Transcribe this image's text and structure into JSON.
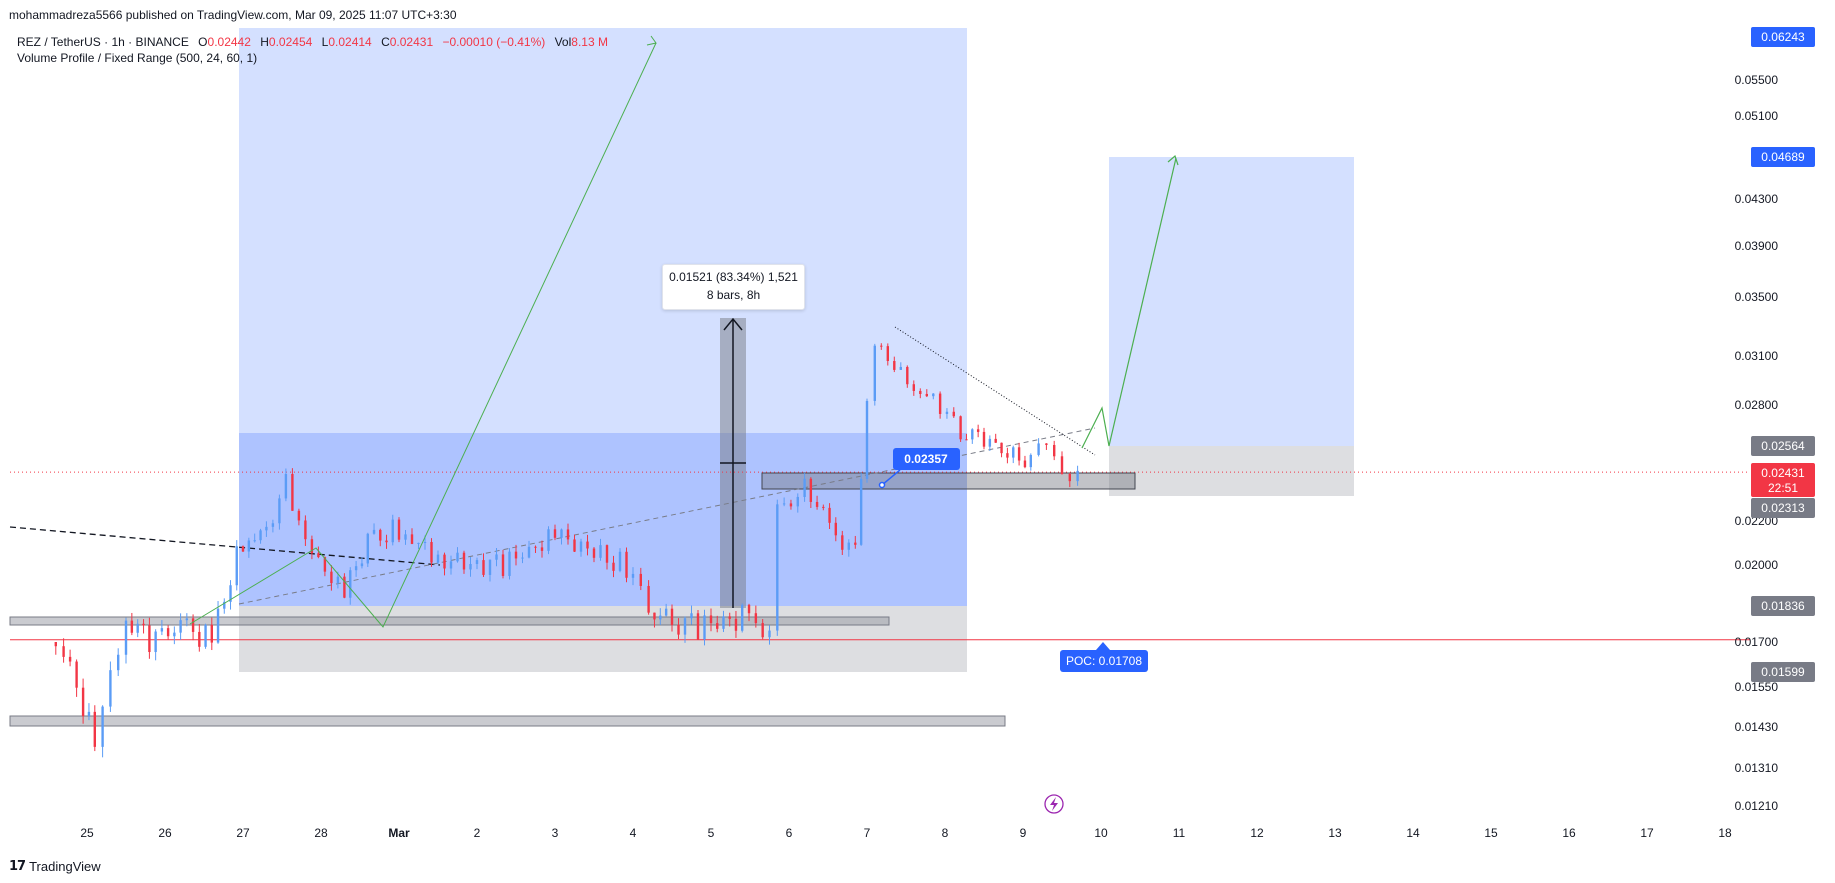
{
  "header": {
    "published_line": "mohammadreza5566 published on TradingView.com, Mar 09, 2025 11:07 UTC+3:30"
  },
  "legend": {
    "symbol_line_prefix": "REZ / TetherUS · 1h · BINANCE",
    "open_label": "O",
    "open_value": "0.02442",
    "high_label": "H",
    "high_value": "0.02454",
    "low_label": "L",
    "low_value": "0.02414",
    "close_label": "C",
    "close_value": "0.02431",
    "change_value": "−0.00010 (−0.41%)",
    "vol_label": "Vol",
    "vol_value": "8.13 M",
    "indicator_line": "Volume Profile / Fixed Range (500, 24, 60, 1)"
  },
  "measure": {
    "line1": "0.01521 (83.34%) 1,521",
    "line2": "8 bars, 8h"
  },
  "labels": {
    "point_label": "0.02357",
    "poc_label": "POC: 0.01708",
    "brand": "TradingView"
  },
  "colors": {
    "up": "#5b9cf6",
    "down": "#f23645",
    "accent_blue": "#2962ff",
    "grey_zone": "#787b86",
    "price_line": "#f23645"
  },
  "chart_data": {
    "type": "candlestick",
    "symbol": "REZ / TetherUS",
    "interval": "1h",
    "exchange": "BINANCE",
    "x_ticks": [
      "25",
      "26",
      "27",
      "28",
      "Mar",
      "2",
      "3",
      "4",
      "5",
      "6",
      "7",
      "8",
      "9",
      "10",
      "11",
      "12",
      "13",
      "14",
      "15",
      "16",
      "17",
      "18"
    ],
    "y_ticks": [
      "0.05500",
      "0.05100",
      "0.04300",
      "0.03900",
      "0.03500",
      "0.03100",
      "0.02800",
      "0.02200",
      "0.02000",
      "0.01700",
      "0.01550",
      "0.01430",
      "0.01310",
      "0.01210"
    ],
    "y_scale": "log",
    "price_tags": [
      {
        "value": "0.06243",
        "kind": "blue"
      },
      {
        "value": "0.04689",
        "kind": "blue"
      },
      {
        "value": "0.02564",
        "kind": "grey"
      },
      {
        "value": "0.02431",
        "kind": "red",
        "sub": "22:51"
      },
      {
        "value": "0.02313",
        "kind": "grey"
      },
      {
        "value": "0.01836",
        "kind": "grey"
      },
      {
        "value": "0.01599",
        "kind": "grey"
      }
    ],
    "current_price": 0.02431,
    "poc": 0.01708,
    "series": [
      {
        "day": 24.5,
        "price": 0.017
      },
      {
        "day": 24.7,
        "price": 0.0163
      },
      {
        "day": 24.95,
        "price": 0.015
      },
      {
        "day": 25.1,
        "price": 0.0138
      },
      {
        "day": 25.3,
        "price": 0.0162
      },
      {
        "day": 25.5,
        "price": 0.0178
      },
      {
        "day": 25.8,
        "price": 0.0172
      },
      {
        "day": 26.2,
        "price": 0.0175
      },
      {
        "day": 26.6,
        "price": 0.0171
      },
      {
        "day": 27.0,
        "price": 0.021
      },
      {
        "day": 27.3,
        "price": 0.0215
      },
      {
        "day": 27.55,
        "price": 0.0238
      },
      {
        "day": 27.8,
        "price": 0.0208
      },
      {
        "day": 28.3,
        "price": 0.0188
      },
      {
        "day": 28.6,
        "price": 0.021
      },
      {
        "day": 29.0,
        "price": 0.0215
      },
      {
        "day": 29.5,
        "price": 0.0203
      },
      {
        "day": 30.0,
        "price": 0.02
      },
      {
        "day": 30.5,
        "price": 0.0202
      },
      {
        "day": 31.0,
        "price": 0.0213
      },
      {
        "day": 31.5,
        "price": 0.0205
      },
      {
        "day": 32.0,
        "price": 0.0197
      },
      {
        "day": 32.2,
        "price": 0.0183
      },
      {
        "day": 32.5,
        "price": 0.0178
      },
      {
        "day": 33.0,
        "price": 0.0176
      },
      {
        "day": 33.4,
        "price": 0.0179
      },
      {
        "day": 33.75,
        "price": 0.0173
      },
      {
        "day": 33.85,
        "price": 0.0222
      },
      {
        "day": 34.2,
        "price": 0.0235
      },
      {
        "day": 34.6,
        "price": 0.0215
      },
      {
        "day": 34.85,
        "price": 0.0205
      },
      {
        "day": 35.0,
        "price": 0.028
      },
      {
        "day": 35.1,
        "price": 0.0315
      },
      {
        "day": 35.35,
        "price": 0.0305
      },
      {
        "day": 35.6,
        "price": 0.029
      },
      {
        "day": 35.85,
        "price": 0.0285
      },
      {
        "day": 36.2,
        "price": 0.0265
      },
      {
        "day": 36.5,
        "price": 0.0262
      },
      {
        "day": 36.8,
        "price": 0.0252
      },
      {
        "day": 37.1,
        "price": 0.0248
      },
      {
        "day": 37.3,
        "price": 0.026
      },
      {
        "day": 37.5,
        "price": 0.0244
      },
      {
        "day": 37.7,
        "price": 0.0243
      }
    ]
  }
}
